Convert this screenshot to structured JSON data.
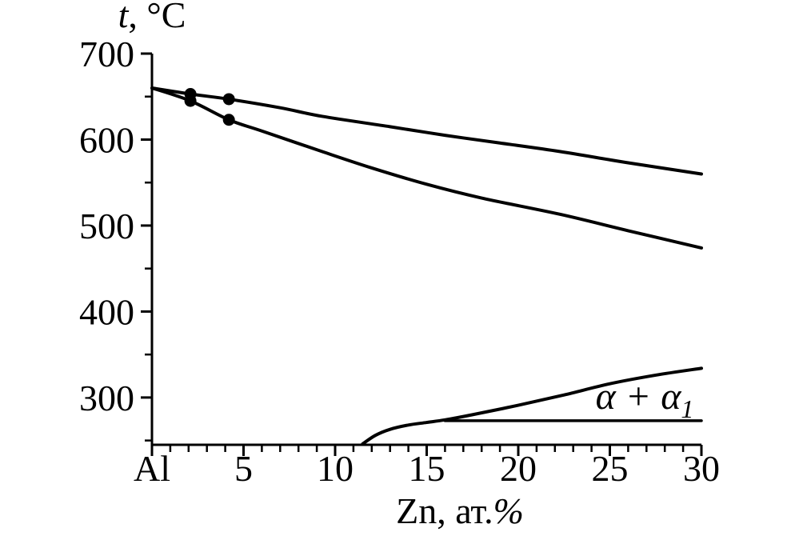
{
  "page": {
    "background": "#ffffff"
  },
  "chart_data": {
    "type": "line",
    "title": {
      "italic": "t",
      "rest": ", °C"
    },
    "xlabel": {
      "main": "Zn, ат.",
      "suffix_italic": "%"
    },
    "x_axis": {
      "min": 0,
      "max": 30,
      "minor_step": 1,
      "major_ticks": [
        {
          "value": 0,
          "label": "Al"
        },
        {
          "value": 5,
          "label": "5"
        },
        {
          "value": 10,
          "label": "10"
        },
        {
          "value": 15,
          "label": "15"
        },
        {
          "value": 20,
          "label": "20"
        },
        {
          "value": 25,
          "label": "25"
        },
        {
          "value": 30,
          "label": "30"
        }
      ]
    },
    "y_axis": {
      "min": 245,
      "max": 700,
      "minor_step": 50,
      "major_ticks": [
        {
          "value": 700,
          "label": "700"
        },
        {
          "value": 600,
          "label": "600"
        },
        {
          "value": 500,
          "label": "500"
        },
        {
          "value": 400,
          "label": "400"
        },
        {
          "value": 300,
          "label": "300"
        }
      ],
      "minor_ticks": [
        650,
        550,
        450,
        350,
        250
      ]
    },
    "series": [
      {
        "name": "liquidus",
        "style": "curve",
        "points": [
          [
            0,
            660
          ],
          [
            2.1,
            653
          ],
          [
            4.2,
            647
          ],
          [
            7,
            637
          ],
          [
            9.3,
            627
          ],
          [
            13,
            615
          ],
          [
            16,
            605
          ],
          [
            19,
            596
          ],
          [
            22.3,
            586
          ],
          [
            26,
            573
          ],
          [
            30,
            560
          ]
        ]
      },
      {
        "name": "solidus",
        "style": "curve",
        "points": [
          [
            0,
            660
          ],
          [
            2.1,
            645
          ],
          [
            4.2,
            623
          ],
          [
            6,
            610
          ],
          [
            9.3,
            586
          ],
          [
            12,
            567
          ],
          [
            15,
            548
          ],
          [
            18,
            532
          ],
          [
            22.3,
            513
          ],
          [
            26,
            494
          ],
          [
            30,
            474
          ]
        ]
      },
      {
        "name": "alpha1-solvus",
        "style": "curve",
        "points": [
          [
            11.5,
            246
          ],
          [
            12.2,
            256
          ],
          [
            13,
            263
          ],
          [
            14,
            268
          ],
          [
            15,
            271
          ],
          [
            16,
            274
          ],
          [
            17.5,
            280
          ],
          [
            20,
            291
          ],
          [
            22.5,
            303
          ],
          [
            25,
            316
          ],
          [
            27.5,
            326
          ],
          [
            30,
            334
          ]
        ]
      },
      {
        "name": "monotectoid-tie-line",
        "style": "straight",
        "points": [
          [
            16,
            273
          ],
          [
            30,
            273
          ]
        ]
      }
    ],
    "markers": {
      "shape": "circle",
      "radius_px": 7.5,
      "points": [
        [
          2.1,
          653
        ],
        [
          2.1,
          645
        ],
        [
          4.2,
          647
        ],
        [
          4.2,
          623
        ]
      ]
    },
    "annotation": {
      "base": "α + α",
      "subscript": "1",
      "x": 26.9,
      "y": 287
    },
    "line_color": "#000000",
    "grid": false,
    "legend": null
  }
}
